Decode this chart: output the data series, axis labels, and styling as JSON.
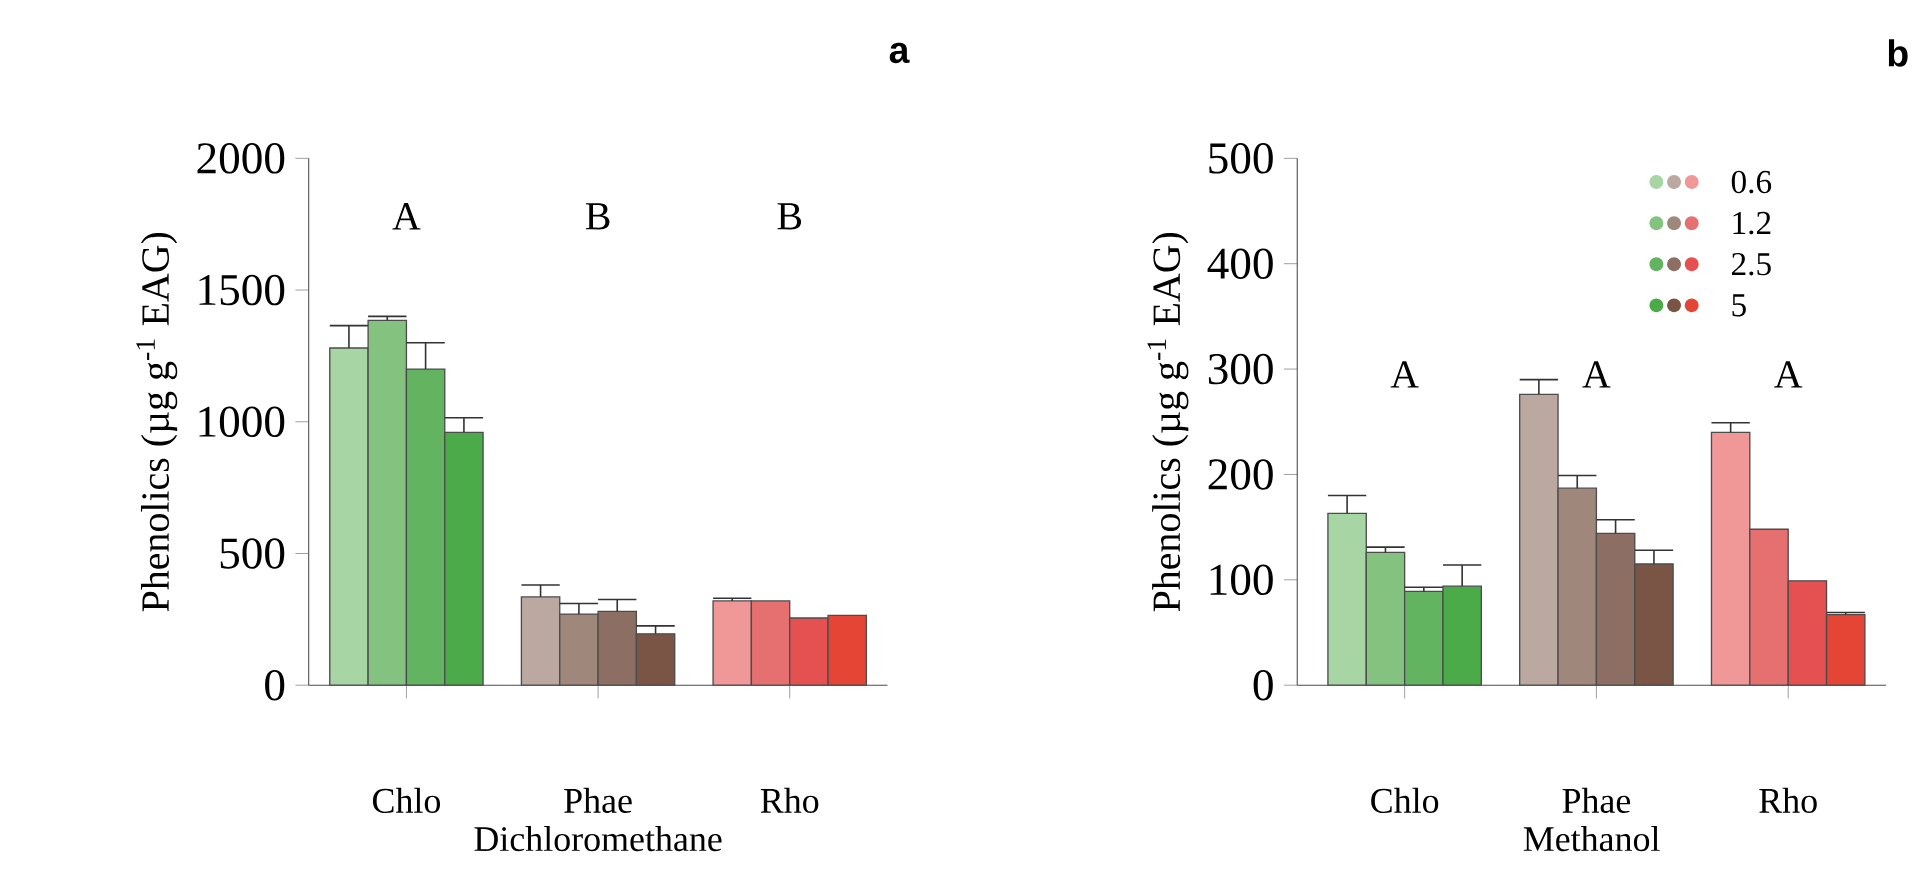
{
  "chart_data": [
    {
      "type": "bar",
      "categories": [
        "Chlo",
        "Phae",
        "Rho"
      ],
      "xlabel": "Dichloromethane",
      "ylabel": "Phenolics (µg g$^{-1}$ EAG)",
      "ylim": [
        0,
        2000
      ],
      "yticks": [
        0,
        500,
        1000,
        1500,
        2000
      ],
      "series": [
        {
          "colors": [
            "#a8d5a4",
            "#bba9a1",
            "#f09898"
          ],
          "values": [
            1280,
            335,
            320
          ],
          "errors": [
            85,
            45,
            10
          ]
        },
        {
          "colors": [
            "#84c37f",
            "#a0877c",
            "#e67070"
          ],
          "values": [
            1385,
            270,
            320
          ],
          "errors": [
            15,
            40,
            null
          ]
        },
        {
          "colors": [
            "#62b461",
            "#8c6e62",
            "#e55050"
          ],
          "values": [
            1200,
            280,
            255
          ],
          "errors": [
            100,
            45,
            null
          ]
        },
        {
          "colors": [
            "#4aab48",
            "#7a5546",
            "#e54535"
          ],
          "values": [
            960,
            195,
            265
          ],
          "errors": [
            55,
            30,
            null
          ]
        }
      ],
      "annotations": [
        "a",
        "A",
        "B",
        "B"
      ]
    },
    {
      "type": "bar",
      "categories": [
        "Chlo",
        "Phae",
        "Rho"
      ],
      "xlabel": "Methanol",
      "ylabel": "Phenolics (µg g$^{-1}$ EAG)",
      "ylim": [
        0,
        500
      ],
      "yticks": [
        0,
        100,
        200,
        300,
        400,
        500
      ],
      "legend": "top right",
      "series": [
        {
          "name": "0.6",
          "colors": [
            "#a8d5a4",
            "#bba9a1",
            "#f09898"
          ],
          "values": [
            163,
            276,
            240
          ],
          "errors": [
            17,
            14,
            9
          ]
        },
        {
          "name": "1.2",
          "colors": [
            "#84c37f",
            "#a0877c",
            "#e67070"
          ],
          "values": [
            126,
            187,
            148
          ],
          "errors": [
            5,
            12,
            null
          ]
        },
        {
          "name": "2.5",
          "colors": [
            "#62b461",
            "#8c6e62",
            "#e55050"
          ],
          "values": [
            89,
            144,
            99
          ],
          "errors": [
            4,
            13,
            null
          ]
        },
        {
          "name": "5",
          "colors": [
            "#4aab48",
            "#7a5546",
            "#e54535"
          ],
          "values": [
            94,
            115,
            67
          ],
          "errors": [
            20,
            13,
            2
          ]
        }
      ],
      "annotations": [
        "b",
        "A",
        "A",
        "A"
      ]
    }
  ]
}
